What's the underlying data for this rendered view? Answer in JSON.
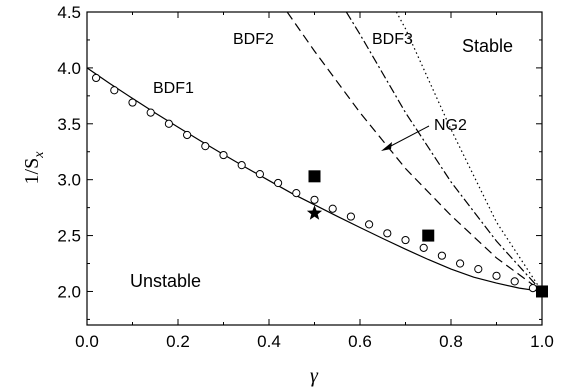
{
  "chart_data": {
    "type": "line",
    "xlabel": "γ",
    "ylabel": "1/S",
    "ylabel_sub": "x",
    "xlim": [
      0.0,
      1.0
    ],
    "ylim": [
      1.7,
      4.5
    ],
    "x_ticks": [
      0.0,
      0.2,
      0.4,
      0.6,
      0.8,
      1.0
    ],
    "x_tick_labels": [
      "0.0",
      "0.2",
      "0.4",
      "0.6",
      "0.8",
      "1.0"
    ],
    "y_ticks": [
      2.0,
      2.5,
      3.0,
      3.5,
      4.0,
      4.5
    ],
    "y_tick_labels": [
      "2.0",
      "2.5",
      "3.0",
      "3.5",
      "4.0",
      "4.5"
    ],
    "region_labels": {
      "stable": "Stable",
      "unstable": "Unstable"
    },
    "series": [
      {
        "name": "BDF1",
        "style": "solid",
        "x": [
          0.0,
          0.05,
          0.1,
          0.15,
          0.2,
          0.25,
          0.3,
          0.35,
          0.4,
          0.45,
          0.5,
          0.55,
          0.6,
          0.65,
          0.7,
          0.75,
          0.8,
          0.85,
          0.9,
          0.95,
          1.0
        ],
        "y": [
          4.0,
          3.86,
          3.727,
          3.596,
          3.47,
          3.346,
          3.225,
          3.107,
          2.992,
          2.878,
          2.775,
          2.672,
          2.572,
          2.474,
          2.378,
          2.286,
          2.2,
          2.128,
          2.075,
          2.03,
          2.0
        ]
      },
      {
        "name": "BDF2",
        "style": "dashed",
        "x": [
          0.44,
          0.5,
          0.6,
          0.7,
          0.8,
          0.9,
          1.0
        ],
        "y": [
          4.5,
          4.15,
          3.6,
          3.1,
          2.68,
          2.3,
          2.0
        ]
      },
      {
        "name": "NG2",
        "style": "dashdot",
        "x": [
          0.57,
          0.6,
          0.7,
          0.8,
          0.9,
          1.0
        ],
        "y": [
          4.5,
          4.3,
          3.6,
          2.98,
          2.45,
          2.0
        ]
      },
      {
        "name": "BDF3",
        "style": "dotted",
        "x": [
          0.68,
          0.7,
          0.8,
          0.9,
          1.0
        ],
        "y": [
          4.5,
          4.35,
          3.45,
          2.62,
          2.0
        ]
      },
      {
        "name": "",
        "style": "open-circles",
        "x": [
          0.02,
          0.06,
          0.1,
          0.14,
          0.18,
          0.22,
          0.26,
          0.3,
          0.34,
          0.38,
          0.42,
          0.46,
          0.5,
          0.54,
          0.58,
          0.62,
          0.66,
          0.7,
          0.74,
          0.78,
          0.82,
          0.86,
          0.9,
          0.94,
          0.98
        ],
        "y": [
          3.91,
          3.8,
          3.69,
          3.6,
          3.5,
          3.4,
          3.3,
          3.22,
          3.13,
          3.05,
          2.97,
          2.88,
          2.82,
          2.74,
          2.67,
          2.6,
          2.52,
          2.46,
          2.39,
          2.32,
          2.25,
          2.2,
          2.14,
          2.09,
          2.03
        ]
      },
      {
        "name": "",
        "style": "filled-squares",
        "x": [
          0.5,
          0.75,
          1.0
        ],
        "y": [
          3.03,
          2.5,
          2.0
        ]
      },
      {
        "name": "",
        "style": "star",
        "x": [
          0.5
        ],
        "y": [
          2.7
        ]
      }
    ],
    "annotations": {
      "bdf1": "BDF1",
      "bdf2": "BDF2",
      "bdf3": "BDF3",
      "ng2": "NG2"
    }
  }
}
